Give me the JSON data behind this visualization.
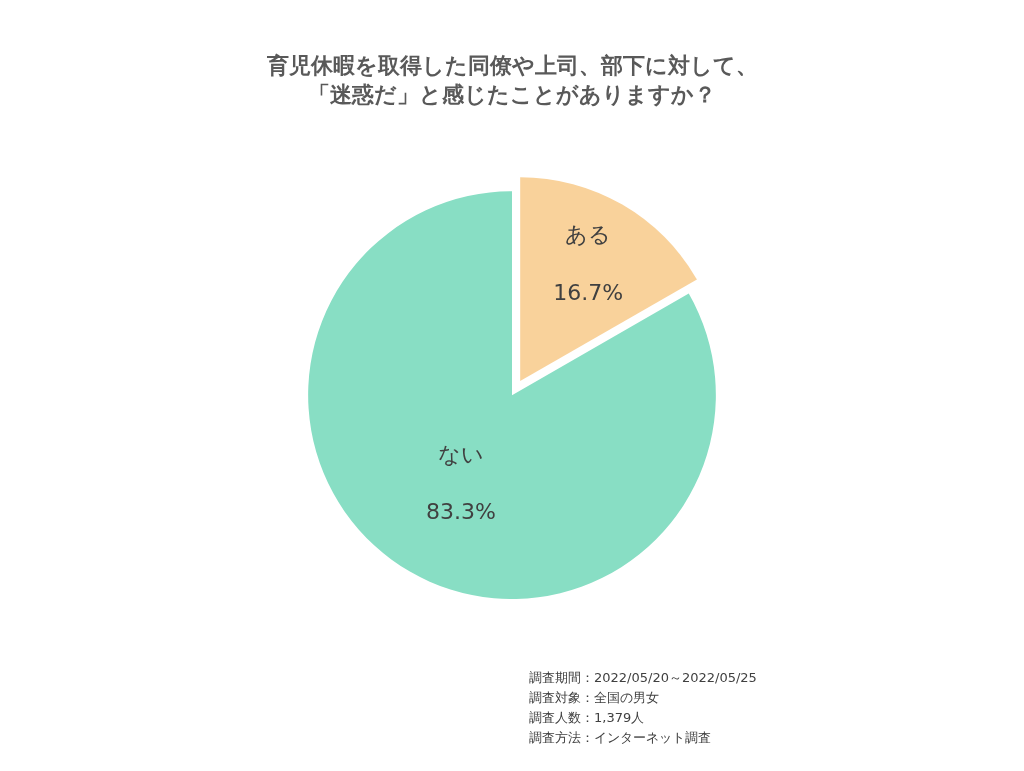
{
  "chart_data": {
    "type": "pie",
    "title": "育児休暇を取得した同僚や上司、部下に対して、「迷惑だ」と感じたことがありますか？",
    "categories": [
      "ある",
      "ない"
    ],
    "values": [
      16.7,
      83.3
    ],
    "value_labels": [
      "16.7%",
      "83.3%"
    ],
    "colors": [
      "#f9d29b",
      "#88dec4"
    ],
    "legend": false,
    "annotations": [
      "調査期間：2022/05/20～2022/05/25",
      "調査対象：全国の男女",
      "調査人数：1,379人",
      "調査方法：インターネット調査"
    ]
  }
}
